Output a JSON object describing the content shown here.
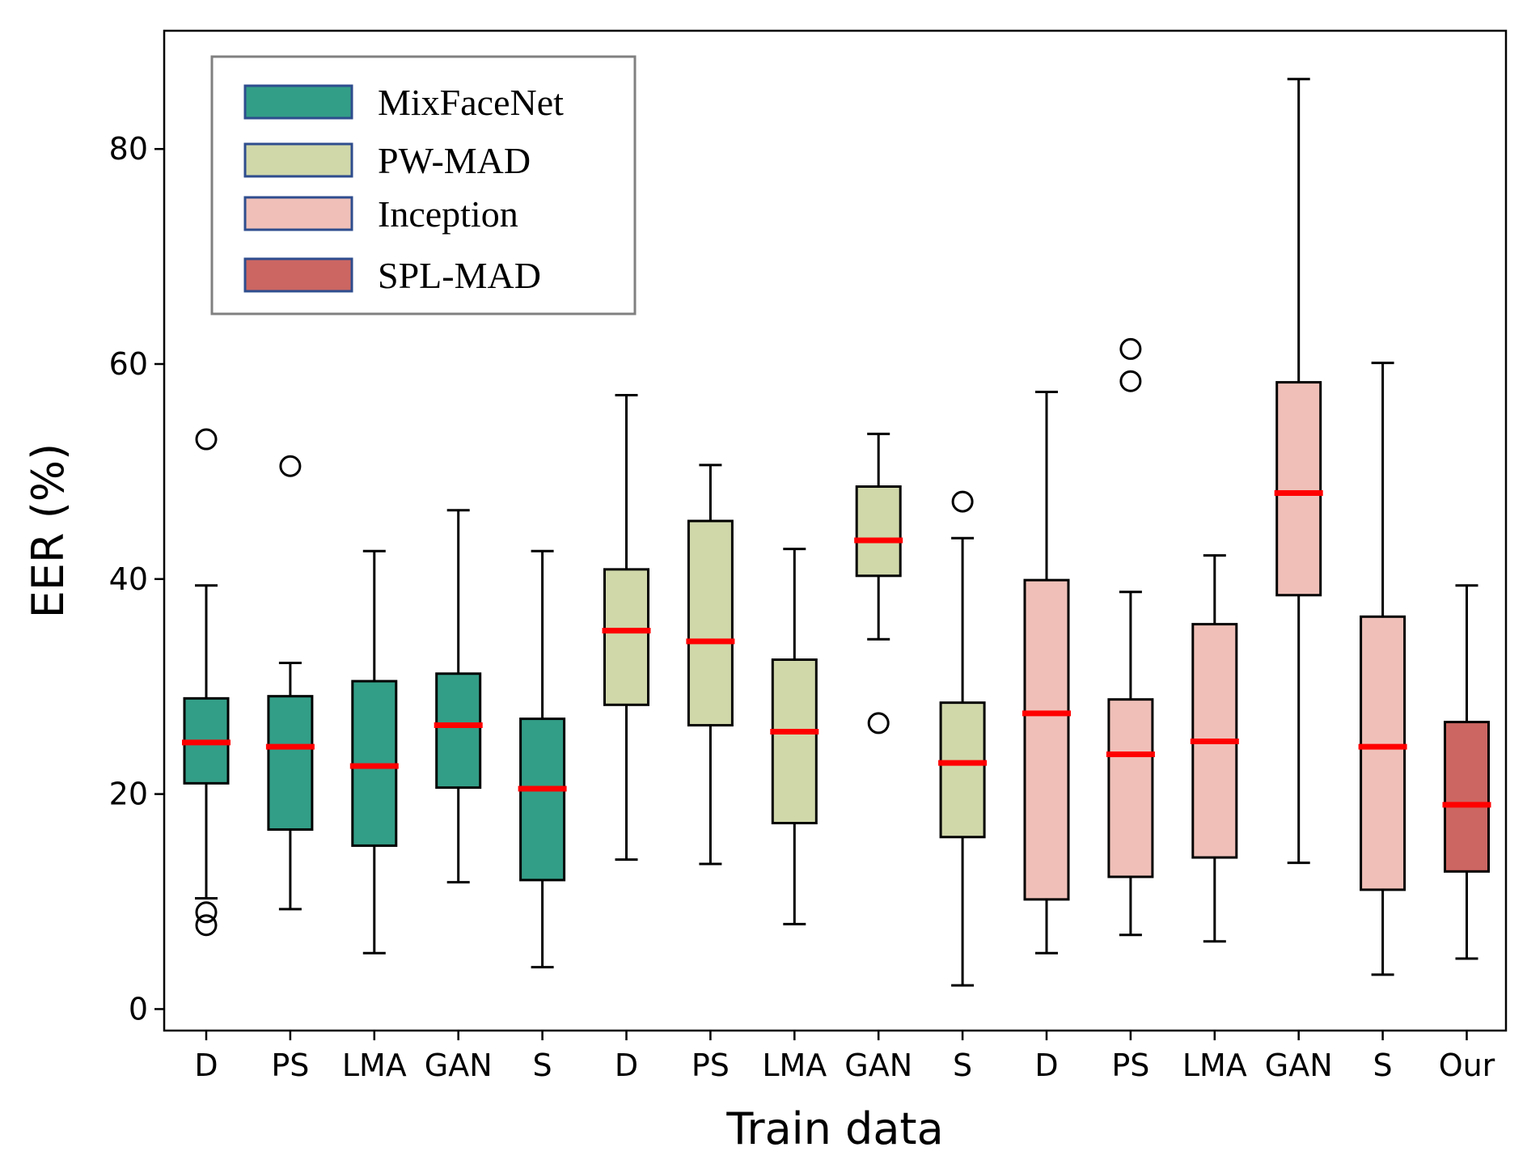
{
  "chart_data": {
    "type": "box",
    "xlabel": "Train data",
    "ylabel": "EER (%)",
    "ylim": [
      -2,
      91
    ],
    "yticks": [
      0,
      20,
      40,
      60,
      80
    ],
    "grid": false,
    "legend": {
      "placement": "top-left",
      "entries": [
        {
          "name": "MixFaceNet",
          "color": "#339e87"
        },
        {
          "name": "PW-MAD",
          "color": "#d0d8aa"
        },
        {
          "name": "Inception",
          "color": "#f0c0b8"
        },
        {
          "name": "SPL-MAD",
          "color": "#cc6662"
        }
      ]
    },
    "median_color": "#ff0000",
    "boxes": [
      {
        "label": "D",
        "group": "MixFaceNet",
        "whisker_low": 10.3,
        "q1": 21.0,
        "median": 24.8,
        "q3": 28.9,
        "whisker_high": 39.4,
        "outliers": [
          53.0,
          9.0,
          7.8
        ]
      },
      {
        "label": "PS",
        "group": "MixFaceNet",
        "whisker_low": 9.3,
        "q1": 16.7,
        "median": 24.4,
        "q3": 29.1,
        "whisker_high": 32.2,
        "outliers": [
          50.5
        ]
      },
      {
        "label": "LMA",
        "group": "MixFaceNet",
        "whisker_low": 5.2,
        "q1": 15.2,
        "median": 22.6,
        "q3": 30.5,
        "whisker_high": 42.6,
        "outliers": []
      },
      {
        "label": "GAN",
        "group": "MixFaceNet",
        "whisker_low": 11.8,
        "q1": 20.6,
        "median": 26.4,
        "q3": 31.2,
        "whisker_high": 46.4,
        "outliers": []
      },
      {
        "label": "S",
        "group": "MixFaceNet",
        "whisker_low": 3.9,
        "q1": 12.0,
        "median": 20.5,
        "q3": 27.0,
        "whisker_high": 42.6,
        "outliers": []
      },
      {
        "label": "D",
        "group": "PW-MAD",
        "whisker_low": 13.9,
        "q1": 28.3,
        "median": 35.2,
        "q3": 40.9,
        "whisker_high": 57.1,
        "outliers": []
      },
      {
        "label": "PS",
        "group": "PW-MAD",
        "whisker_low": 13.5,
        "q1": 26.4,
        "median": 34.2,
        "q3": 45.4,
        "whisker_high": 50.6,
        "outliers": []
      },
      {
        "label": "LMA",
        "group": "PW-MAD",
        "whisker_low": 7.9,
        "q1": 17.3,
        "median": 25.8,
        "q3": 32.5,
        "whisker_high": 42.8,
        "outliers": []
      },
      {
        "label": "GAN",
        "group": "PW-MAD",
        "whisker_low": 34.4,
        "q1": 40.3,
        "median": 43.6,
        "q3": 48.6,
        "whisker_high": 53.5,
        "outliers": [
          26.6
        ]
      },
      {
        "label": "S",
        "group": "PW-MAD",
        "whisker_low": 2.2,
        "q1": 16.0,
        "median": 22.9,
        "q3": 28.5,
        "whisker_high": 43.8,
        "outliers": [
          47.2
        ]
      },
      {
        "label": "D",
        "group": "Inception",
        "whisker_low": 5.2,
        "q1": 10.2,
        "median": 27.5,
        "q3": 39.9,
        "whisker_high": 57.4,
        "outliers": []
      },
      {
        "label": "PS",
        "group": "Inception",
        "whisker_low": 6.9,
        "q1": 12.3,
        "median": 23.7,
        "q3": 28.8,
        "whisker_high": 38.8,
        "outliers": [
          61.4,
          58.4
        ]
      },
      {
        "label": "LMA",
        "group": "Inception",
        "whisker_low": 6.3,
        "q1": 14.1,
        "median": 24.9,
        "q3": 35.8,
        "whisker_high": 42.2,
        "outliers": []
      },
      {
        "label": "GAN",
        "group": "Inception",
        "whisker_low": 13.6,
        "q1": 38.5,
        "median": 48.0,
        "q3": 58.3,
        "whisker_high": 86.5,
        "outliers": []
      },
      {
        "label": "S",
        "group": "Inception",
        "whisker_low": 3.2,
        "q1": 11.1,
        "median": 24.4,
        "q3": 36.5,
        "whisker_high": 60.1,
        "outliers": []
      },
      {
        "label": "Our",
        "group": "SPL-MAD",
        "whisker_low": 4.7,
        "q1": 12.8,
        "median": 19.0,
        "q3": 26.7,
        "whisker_high": 39.4,
        "outliers": []
      }
    ]
  }
}
